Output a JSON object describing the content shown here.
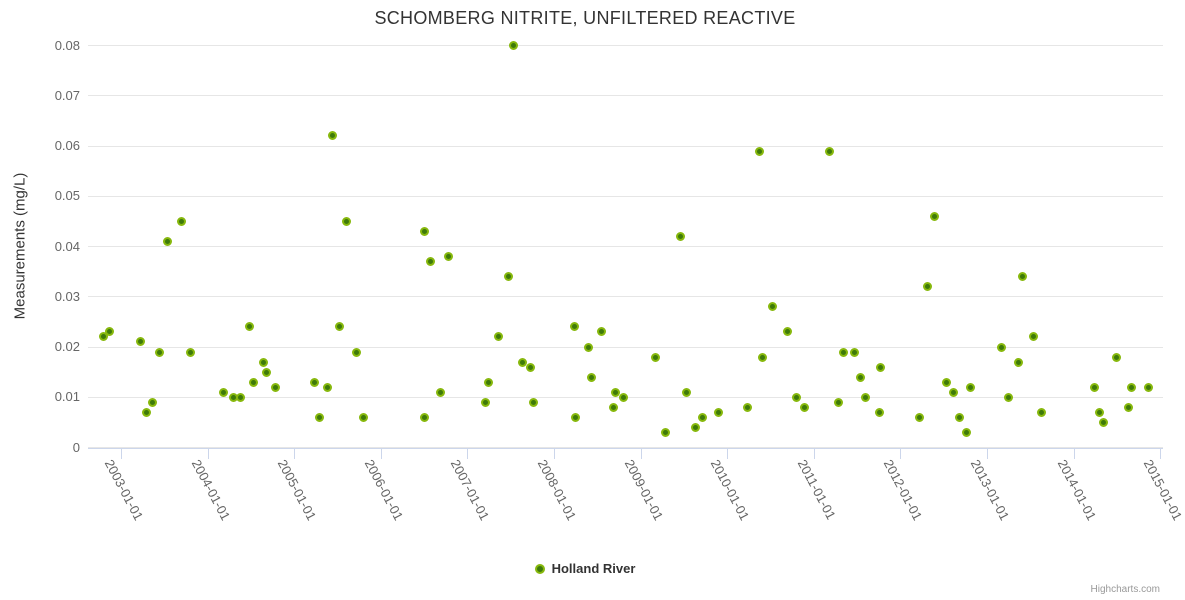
{
  "title": "SCHOMBERG NITRITE, UNFILTERED REACTIVE",
  "y_axis": {
    "title": "Measurements (mg/L)",
    "tick_labels": [
      "0.08",
      "0.07",
      "0.06",
      "0.05",
      "0.04",
      "0.03",
      "0.02",
      "0.01",
      "0"
    ]
  },
  "x_axis": {
    "tick_labels": [
      "2003-01-01",
      "2004-01-01",
      "2005-01-01",
      "2006-01-01",
      "2007-01-01",
      "2008-01-01",
      "2009-01-01",
      "2010-01-01",
      "2011-01-01",
      "2012-01-01",
      "2013-01-01",
      "2014-01-01",
      "2015-01-01"
    ]
  },
  "legend": {
    "label": "Holland River"
  },
  "credits": "Highcharts.com",
  "colors": {
    "title_text": "#333333",
    "axis_label_text": "#666666",
    "gridline": "#e6e6e6",
    "axis_line": "#ccd6eb",
    "marker_ring": "#87b80d",
    "marker_core": "#3e7a0a",
    "credits_text": "#999999"
  },
  "chart_data": {
    "type": "scatter",
    "title": "SCHOMBERG NITRITE, UNFILTERED REACTIVE",
    "xlabel": "",
    "ylabel": "Measurements (mg/L)",
    "ylim": [
      0,
      0.08
    ],
    "y_tick_step": 0.01,
    "x_ticks": [
      "2003-01-01",
      "2004-01-01",
      "2005-01-01",
      "2006-01-01",
      "2007-01-01",
      "2008-01-01",
      "2009-01-01",
      "2010-01-01",
      "2011-01-01",
      "2012-01-01",
      "2013-01-01",
      "2014-01-01",
      "2015-01-01"
    ],
    "grid": "horizontal",
    "legend_position": "bottom-center",
    "series": [
      {
        "name": "Holland River",
        "points": [
          [
            "2002-10-20",
            0.022
          ],
          [
            "2002-11-14",
            0.023
          ],
          [
            "2003-03-25",
            0.021
          ],
          [
            "2003-04-18",
            0.007
          ],
          [
            "2003-05-14",
            0.009
          ],
          [
            "2003-06-13",
            0.019
          ],
          [
            "2003-07-16",
            0.041
          ],
          [
            "2003-09-13",
            0.045
          ],
          [
            "2003-10-22",
            0.019
          ],
          [
            "2004-03-10",
            0.011
          ],
          [
            "2004-04-21",
            0.01
          ],
          [
            "2004-05-21",
            0.01
          ],
          [
            "2004-06-24",
            0.024
          ],
          [
            "2004-07-14",
            0.013
          ],
          [
            "2004-08-25",
            0.017
          ],
          [
            "2004-09-08",
            0.015
          ],
          [
            "2004-10-15",
            0.012
          ],
          [
            "2005-03-28",
            0.013
          ],
          [
            "2005-04-18",
            0.006
          ],
          [
            "2005-05-21",
            0.012
          ],
          [
            "2005-06-12",
            0.062
          ],
          [
            "2005-07-11",
            0.024
          ],
          [
            "2005-08-09",
            0.045
          ],
          [
            "2005-09-21",
            0.019
          ],
          [
            "2005-10-21",
            0.006
          ],
          [
            "2006-07-04",
            0.043
          ],
          [
            "2006-07-06",
            0.006
          ],
          [
            "2006-07-30",
            0.037
          ],
          [
            "2006-09-11",
            0.011
          ],
          [
            "2006-10-15",
            0.038
          ],
          [
            "2007-03-19",
            0.009
          ],
          [
            "2007-04-01",
            0.013
          ],
          [
            "2007-05-14",
            0.022
          ],
          [
            "2007-06-24",
            0.034
          ],
          [
            "2007-07-15",
            0.08
          ],
          [
            "2007-08-22",
            0.017
          ],
          [
            "2007-09-23",
            0.016
          ],
          [
            "2007-10-08",
            0.009
          ],
          [
            "2008-03-29",
            0.024
          ],
          [
            "2008-04-02",
            0.006
          ],
          [
            "2008-05-24",
            0.02
          ],
          [
            "2008-06-09",
            0.014
          ],
          [
            "2008-07-21",
            0.023
          ],
          [
            "2008-09-07",
            0.008
          ],
          [
            "2008-09-15",
            0.011
          ],
          [
            "2008-10-22",
            0.01
          ],
          [
            "2009-03-06",
            0.018
          ],
          [
            "2009-04-14",
            0.003
          ],
          [
            "2009-06-20",
            0.042
          ],
          [
            "2009-07-15",
            0.011
          ],
          [
            "2009-08-21",
            0.004
          ],
          [
            "2009-09-20",
            0.006
          ],
          [
            "2009-11-27",
            0.007
          ],
          [
            "2010-03-29",
            0.008
          ],
          [
            "2010-05-19",
            0.059
          ],
          [
            "2010-05-28",
            0.018
          ],
          [
            "2010-07-09",
            0.028
          ],
          [
            "2010-09-11",
            0.023
          ],
          [
            "2010-10-18",
            0.01
          ],
          [
            "2010-11-21",
            0.008
          ],
          [
            "2011-03-10",
            0.059
          ],
          [
            "2011-04-16",
            0.009
          ],
          [
            "2011-05-07",
            0.019
          ],
          [
            "2011-06-23",
            0.019
          ],
          [
            "2011-07-18",
            0.014
          ],
          [
            "2011-08-05",
            0.01
          ],
          [
            "2011-10-07",
            0.007
          ],
          [
            "2011-10-11",
            0.016
          ],
          [
            "2012-03-20",
            0.006
          ],
          [
            "2012-04-26",
            0.032
          ],
          [
            "2012-05-25",
            0.046
          ],
          [
            "2012-07-15",
            0.013
          ],
          [
            "2012-08-13",
            0.011
          ],
          [
            "2012-09-08",
            0.006
          ],
          [
            "2012-10-07",
            0.003
          ],
          [
            "2012-10-24",
            0.012
          ],
          [
            "2013-03-04",
            0.02
          ],
          [
            "2013-04-03",
            0.01
          ],
          [
            "2013-05-15",
            0.017
          ],
          [
            "2013-06-01",
            0.034
          ],
          [
            "2013-07-17",
            0.022
          ],
          [
            "2013-08-20",
            0.007
          ],
          [
            "2014-03-28",
            0.012
          ],
          [
            "2014-04-22",
            0.007
          ],
          [
            "2014-05-06",
            0.005
          ],
          [
            "2014-06-30",
            0.018
          ],
          [
            "2014-08-20",
            0.008
          ],
          [
            "2014-09-01",
            0.012
          ],
          [
            "2014-11-13",
            0.012
          ]
        ]
      }
    ]
  }
}
